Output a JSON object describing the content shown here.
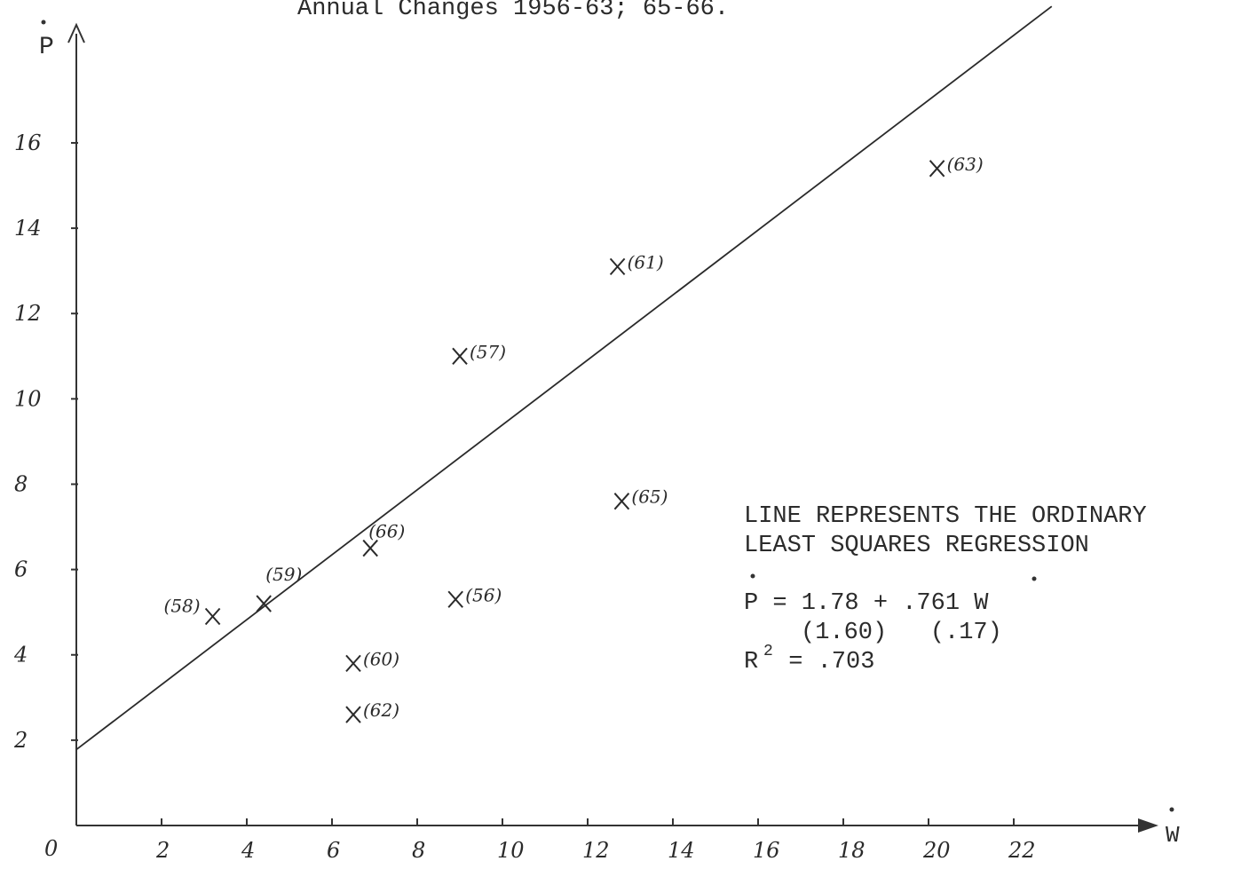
{
  "chart_data": {
    "type": "scatter",
    "title": "Annual Changes 1956-63; 65-66.",
    "xlabel": "W",
    "ylabel": "P",
    "origin_label": "0",
    "x_ticks": [
      "2",
      "4",
      "6",
      "8",
      "10",
      "12",
      "14",
      "16",
      "18",
      "20",
      "22"
    ],
    "y_ticks": [
      "2",
      "4",
      "6",
      "8",
      "10",
      "12",
      "14",
      "16"
    ],
    "xlim": [
      0,
      25
    ],
    "ylim": [
      0,
      18.6
    ],
    "grid": false,
    "points": [
      {
        "label": "(58)",
        "x": 3.2,
        "y": 4.9
      },
      {
        "label": "(59)",
        "x": 4.4,
        "y": 5.2
      },
      {
        "label": "(66)",
        "x": 6.9,
        "y": 6.5
      },
      {
        "label": "(60)",
        "x": 6.5,
        "y": 3.8
      },
      {
        "label": "(62)",
        "x": 6.5,
        "y": 2.6
      },
      {
        "label": "(56)",
        "x": 8.9,
        "y": 5.3
      },
      {
        "label": "(57)",
        "x": 9.0,
        "y": 11.0
      },
      {
        "label": "(61)",
        "x": 12.7,
        "y": 13.1
      },
      {
        "label": "(65)",
        "x": 12.8,
        "y": 7.6
      },
      {
        "label": "(63)",
        "x": 20.2,
        "y": 15.4
      }
    ],
    "regression": {
      "intercept": 1.78,
      "slope": 0.761
    },
    "annotation": {
      "line1": "LINE REPRESENTS THE ORDINARY",
      "line2": "LEAST SQUARES REGRESSION",
      "eq_lhs": "P = 1.78 + .761 W",
      "se": "(1.60)   (.17)",
      "r2_label": "R",
      "r2_exp": "2",
      "r2_value": " = .703"
    }
  }
}
